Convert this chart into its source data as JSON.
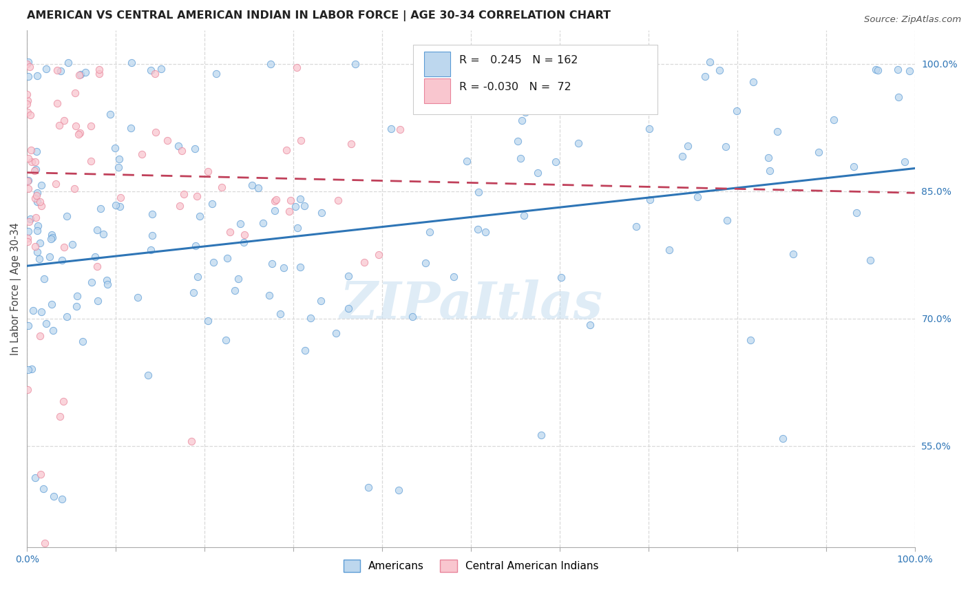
{
  "title": "AMERICAN VS CENTRAL AMERICAN INDIAN IN LABOR FORCE | AGE 30-34 CORRELATION CHART",
  "source": "Source: ZipAtlas.com",
  "ylabel": "In Labor Force | Age 30-34",
  "xlim": [
    0.0,
    1.0
  ],
  "ylim": [
    0.43,
    1.04
  ],
  "x_ticks": [
    0.0,
    0.1,
    0.2,
    0.3,
    0.4,
    0.5,
    0.6,
    0.7,
    0.8,
    0.9,
    1.0
  ],
  "y_ticks_right": [
    0.55,
    0.7,
    0.85,
    1.0
  ],
  "blue_R": 0.245,
  "blue_N": 162,
  "pink_R": -0.03,
  "pink_N": 72,
  "blue_fill_color": "#bdd7ee",
  "pink_fill_color": "#f9c6cf",
  "blue_edge_color": "#5b9bd5",
  "pink_edge_color": "#e8849a",
  "blue_line_color": "#2e75b6",
  "pink_line_color": "#c0405a",
  "watermark": "ZIPaItlas",
  "background_color": "#ffffff",
  "grid_color": "#d9d9d9",
  "legend_label_blue": "Americans",
  "legend_label_pink": "Central American Indians",
  "blue_trend_start": 0.762,
  "blue_trend_end": 0.877,
  "pink_trend_start": 0.872,
  "pink_trend_end": 0.848
}
